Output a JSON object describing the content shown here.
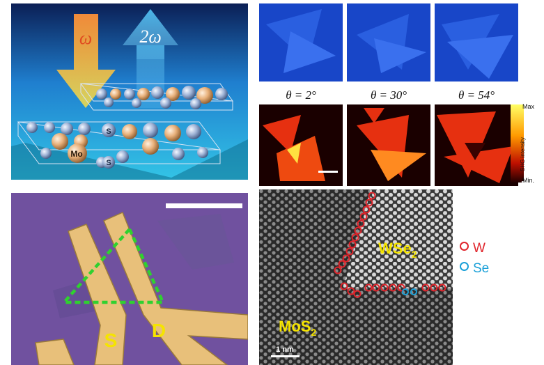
{
  "panel_schematic": {
    "omega_label": "ω",
    "two_omega_label": "2ω",
    "atom_mo": "Mo",
    "atom_s_top": "S",
    "atom_s_bottom": "S"
  },
  "panel_shg": {
    "angles": [
      "θ = 2°",
      "θ = 30°",
      "θ = 54°"
    ],
    "colorbar_max": "Max",
    "colorbar_min": "Min.",
    "colorbar_title": "SHG intensity"
  },
  "panel_device": {
    "source_label": "S",
    "drain_label": "D"
  },
  "panel_stem": {
    "wse2_label": "WSe",
    "wse2_sub": "2",
    "mos2_label": "MoS",
    "mos2_sub": "2",
    "scalebar_label": "1 nm"
  },
  "legend": {
    "w_label": "W",
    "se_label": "Se"
  },
  "colors": {
    "w_ring": "#e0242b",
    "se_ring": "#1aa0d8",
    "label_yellow": "#f5e400",
    "triangle_dash": "#2fd12f"
  }
}
